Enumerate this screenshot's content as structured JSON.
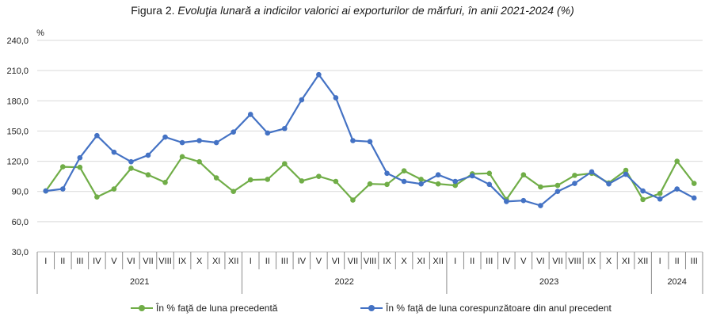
{
  "title": {
    "prefix": "Figura 2.",
    "text": "Evoluţia lunară a indicilor valorici ai exporturilor de mărfuri, în anii 2021-2024 (%)"
  },
  "colors": {
    "green": "#70ad47",
    "blue": "#4472c4"
  },
  "chart_data": {
    "type": "line",
    "title": "Evoluţia lunară a indicilor valorici ai exporturilor de mărfuri, în anii 2021-2024 (%)",
    "ylabel": "%",
    "ylim": [
      30,
      240
    ],
    "yticks": [
      "30,0",
      "60,0",
      "90,0",
      "120,0",
      "150,0",
      "180,0",
      "210,0",
      "240,0"
    ],
    "grid": true,
    "legend": "bottom",
    "categories": [
      "I",
      "II",
      "III",
      "IV",
      "V",
      "VI",
      "VII",
      "VIII",
      "IX",
      "X",
      "XI",
      "XII",
      "I",
      "II",
      "III",
      "IV",
      "V",
      "VI",
      "VII",
      "VIII",
      "IX",
      "X",
      "XI",
      "XII",
      "I",
      "II",
      "III",
      "IV",
      "V",
      "VI",
      "VII",
      "VIII",
      "IX",
      "X",
      "XI",
      "XII",
      "I",
      "II",
      "III"
    ],
    "years": [
      {
        "label": "2021",
        "count": 12
      },
      {
        "label": "2022",
        "count": 12
      },
      {
        "label": "2023",
        "count": 12
      },
      {
        "label": "2024",
        "count": 3
      }
    ],
    "series": [
      {
        "name": "În % faţă de luna precedentă",
        "color": "#70ad47",
        "values": [
          90.5,
          114.5,
          114.0,
          84.5,
          92.5,
          113.0,
          106.5,
          99.0,
          124.5,
          119.5,
          103.5,
          90.0,
          101.5,
          102.0,
          117.5,
          100.5,
          105.0,
          100.0,
          81.5,
          97.5,
          97.0,
          110.5,
          102.0,
          97.5,
          96.0,
          107.5,
          108.0,
          82.0,
          106.5,
          94.5,
          96.0,
          106.0,
          108.0,
          98.5,
          111.0,
          82.0,
          88.0,
          120.0,
          98.0
        ]
      },
      {
        "name": "În % faţă de luna corespunzătoare din anul precedent",
        "color": "#4472c4",
        "values": [
          90.5,
          92.5,
          123.5,
          145.5,
          129.0,
          119.5,
          126.0,
          144.0,
          138.5,
          140.5,
          138.5,
          149.0,
          166.5,
          148.0,
          152.5,
          181.0,
          206.0,
          183.0,
          140.5,
          139.5,
          108.0,
          100.0,
          97.5,
          106.5,
          100.0,
          105.5,
          97.0,
          80.0,
          81.0,
          76.0,
          90.0,
          98.0,
          109.5,
          97.5,
          107.0,
          90.5,
          82.5,
          92.5,
          83.5
        ]
      }
    ]
  }
}
